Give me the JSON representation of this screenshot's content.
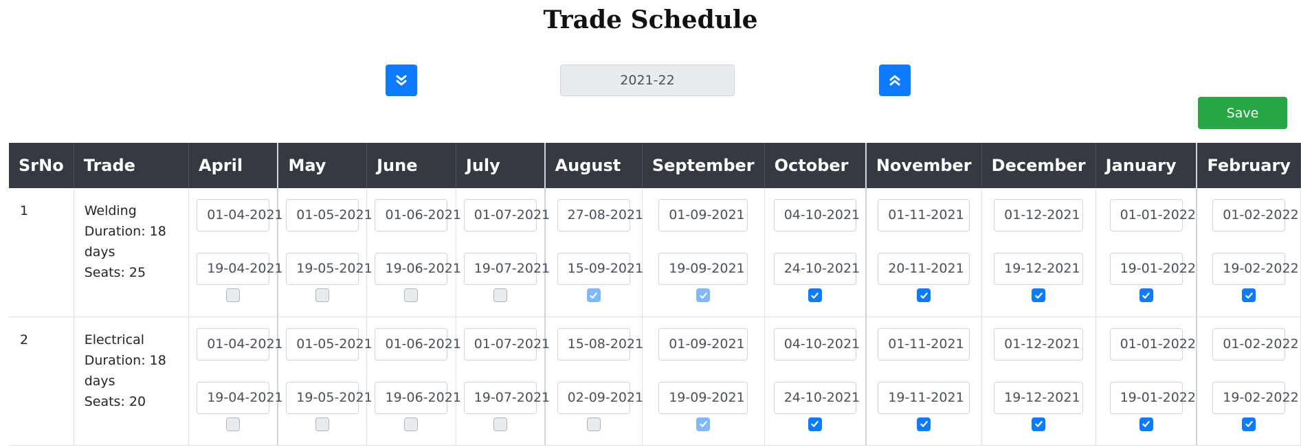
{
  "page": {
    "title": "Trade Schedule"
  },
  "year": {
    "value": "2021-22"
  },
  "buttons": {
    "save": "Save"
  },
  "colors": {
    "primary": "#0d7bfd",
    "success": "#28a745",
    "header_bg": "#343a40"
  },
  "icons": {
    "prev": "angle-double-down-icon",
    "next": "angle-double-up-icon",
    "check": "check-icon"
  },
  "table": {
    "headers": [
      "SrNo",
      "Trade",
      "April",
      "May",
      "June",
      "July",
      "August",
      "September",
      "October",
      "November",
      "December",
      "January",
      "February"
    ],
    "rows": [
      {
        "srno": "1",
        "name": "Welding",
        "duration": "Duration: 18 days",
        "seats": "Seats: 25",
        "months": [
          {
            "start": "01-04-2021",
            "end": "19-04-2021",
            "state": "off"
          },
          {
            "start": "01-05-2021",
            "end": "19-05-2021",
            "state": "off"
          },
          {
            "start": "01-06-2021",
            "end": "19-06-2021",
            "state": "off"
          },
          {
            "start": "01-07-2021",
            "end": "19-07-2021",
            "state": "off"
          },
          {
            "start": "27-08-2021",
            "end": "15-09-2021",
            "state": "dim"
          },
          {
            "start": "01-09-2021",
            "end": "19-09-2021",
            "state": "dim"
          },
          {
            "start": "04-10-2021",
            "end": "24-10-2021",
            "state": "on"
          },
          {
            "start": "01-11-2021",
            "end": "20-11-2021",
            "state": "on"
          },
          {
            "start": "01-12-2021",
            "end": "19-12-2021",
            "state": "on"
          },
          {
            "start": "01-01-2022",
            "end": "19-01-2022",
            "state": "on"
          },
          {
            "start": "01-02-2022",
            "end": "19-02-2022",
            "state": "on"
          }
        ]
      },
      {
        "srno": "2",
        "name": "Electrical",
        "duration": "Duration: 18 days",
        "seats": "Seats: 20",
        "months": [
          {
            "start": "01-04-2021",
            "end": "19-04-2021",
            "state": "off"
          },
          {
            "start": "01-05-2021",
            "end": "19-05-2021",
            "state": "off"
          },
          {
            "start": "01-06-2021",
            "end": "19-06-2021",
            "state": "off"
          },
          {
            "start": "01-07-2021",
            "end": "19-07-2021",
            "state": "off"
          },
          {
            "start": "15-08-2021",
            "end": "02-09-2021",
            "state": "off"
          },
          {
            "start": "01-09-2021",
            "end": "19-09-2021",
            "state": "dim"
          },
          {
            "start": "04-10-2021",
            "end": "24-10-2021",
            "state": "on"
          },
          {
            "start": "01-11-2021",
            "end": "19-11-2021",
            "state": "on"
          },
          {
            "start": "01-12-2021",
            "end": "19-12-2021",
            "state": "on"
          },
          {
            "start": "01-01-2022",
            "end": "19-01-2022",
            "state": "on"
          },
          {
            "start": "01-02-2022",
            "end": "19-02-2022",
            "state": "on"
          }
        ]
      }
    ]
  }
}
